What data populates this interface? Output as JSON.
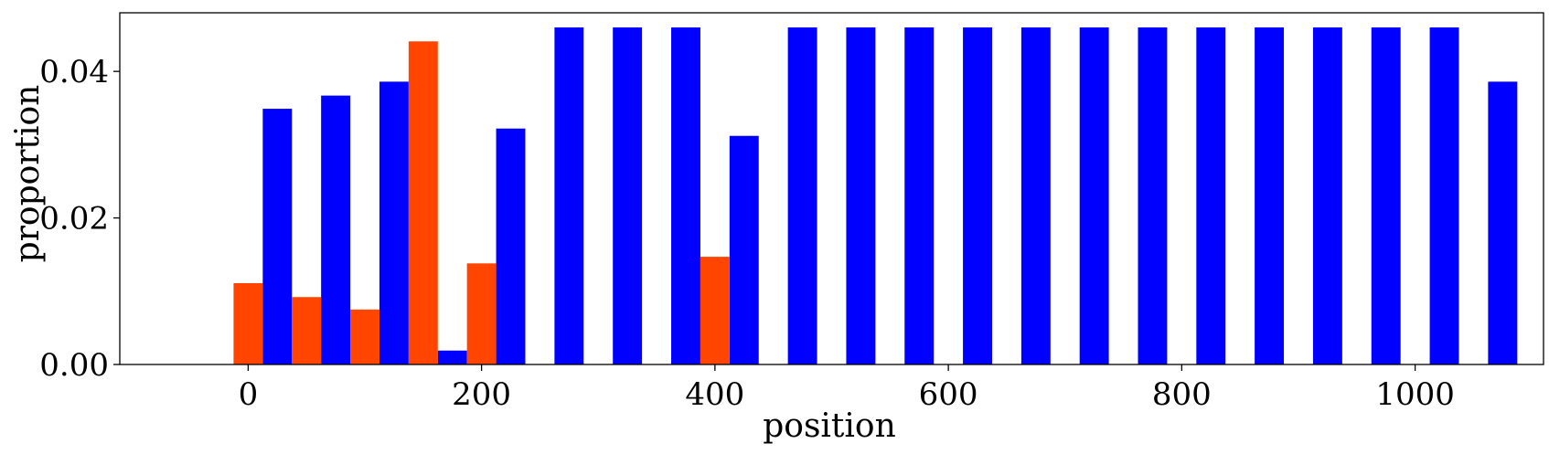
{
  "chart_data": {
    "type": "bar",
    "title": "",
    "xlabel": "position",
    "ylabel": "proportion",
    "xlim": [
      -110,
      1110
    ],
    "ylim": [
      0,
      0.048
    ],
    "bar_width": 25,
    "grid": false,
    "xticks": [
      {
        "value": 0,
        "label": "0"
      },
      {
        "value": 200,
        "label": "200"
      },
      {
        "value": 400,
        "label": "400"
      },
      {
        "value": 600,
        "label": "600"
      },
      {
        "value": 800,
        "label": "800"
      },
      {
        "value": 1000,
        "label": "1000"
      }
    ],
    "yticks": [
      {
        "value": 0,
        "label": "0.00"
      },
      {
        "value": 0.02,
        "label": "0.02"
      },
      {
        "value": 0.04,
        "label": "0.04"
      }
    ],
    "series": [
      {
        "color": "#0000ff",
        "points": [
          {
            "x": 25,
            "y": 0.0349
          },
          {
            "x": 75,
            "y": 0.0367
          },
          {
            "x": 125,
            "y": 0.0386
          },
          {
            "x": 175,
            "y": 0.0019
          },
          {
            "x": 225,
            "y": 0.0322
          },
          {
            "x": 275,
            "y": 0.046
          },
          {
            "x": 325,
            "y": 0.046
          },
          {
            "x": 375,
            "y": 0.046
          },
          {
            "x": 425,
            "y": 0.0312
          },
          {
            "x": 475,
            "y": 0.046
          },
          {
            "x": 525,
            "y": 0.046
          },
          {
            "x": 575,
            "y": 0.046
          },
          {
            "x": 625,
            "y": 0.046
          },
          {
            "x": 675,
            "y": 0.046
          },
          {
            "x": 725,
            "y": 0.046
          },
          {
            "x": 775,
            "y": 0.046
          },
          {
            "x": 825,
            "y": 0.046
          },
          {
            "x": 875,
            "y": 0.046
          },
          {
            "x": 925,
            "y": 0.046
          },
          {
            "x": 975,
            "y": 0.046
          },
          {
            "x": 1025,
            "y": 0.046
          },
          {
            "x": 1075,
            "y": 0.0386
          }
        ]
      },
      {
        "color": "#ff4500",
        "points": [
          {
            "x": 0,
            "y": 0.0111
          },
          {
            "x": 50,
            "y": 0.0092
          },
          {
            "x": 100,
            "y": 0.0075
          },
          {
            "x": 150,
            "y": 0.0441
          },
          {
            "x": 200,
            "y": 0.0138
          },
          {
            "x": 400,
            "y": 0.0147
          }
        ]
      }
    ]
  }
}
